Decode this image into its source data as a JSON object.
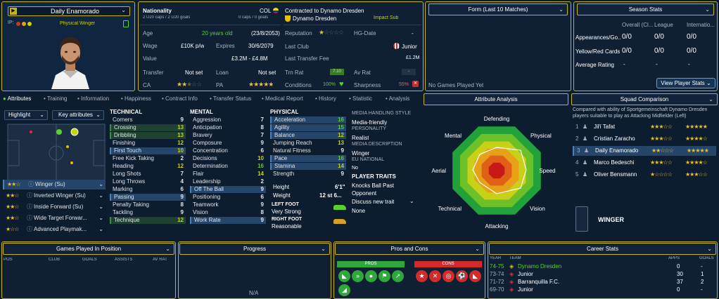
{
  "player": {
    "name": "Daily Enamorado",
    "role": "Physical Winger",
    "ip": "IP:",
    "nationality_label": "Nationality",
    "nationality": "COL",
    "caps": "1 cap / 0 goals",
    "u20": "2 U20 caps / 2 U20 goals",
    "caps_right": "0 caps / 0 goals",
    "contracted": "Contracted to Dynamo Dresden",
    "club": "Dynamo Dresden",
    "squad_status": "Impact Sub"
  },
  "info": {
    "age_label": "Age",
    "age": "20 years old",
    "dob": "(23/8/2053)",
    "wage_label": "Wage",
    "wage": "£10K p/w",
    "expires_label": "Expires",
    "expires": "30/6/2079",
    "value_label": "Value",
    "value": "£3.2M - £4.8M",
    "transfer_label": "Transfer",
    "transfer": "Not set",
    "loan_label": "Loan",
    "loan": "Not set",
    "ca_label": "CA",
    "pa_label": "PA",
    "reputation_label": "Reputation",
    "hg_label": "HG-Date",
    "hg_value": "-",
    "lastclub_label": "Last Club",
    "lastclub": "Junior",
    "ltf_label": "Last Transfer Fee",
    "ltf": "£1.2M",
    "trn_label": "Trn Rat",
    "trn_value": "7.10",
    "avrat_label": "Av Rat",
    "avrat": "-",
    "cond_label": "Conditions",
    "cond": "100%",
    "sharp_label": "Sharpness",
    "sharp": "55%"
  },
  "form": {
    "title": "Form (Last 10 Matches)",
    "empty": "No Games Played Yet"
  },
  "season": {
    "title": "Season Stats",
    "cols": [
      "Overall (Cl...",
      "League",
      "Internatio..."
    ],
    "rows": [
      {
        "label": "Appearances/Go...",
        "v": [
          "0/0",
          "0/0",
          "0/0"
        ]
      },
      {
        "label": "Yellow/Red Cards",
        "v": [
          "0/0",
          "0/0",
          "0/0"
        ]
      },
      {
        "label": "Average Rating",
        "v": [
          "-",
          "-",
          "-"
        ]
      }
    ],
    "btn": "View Player Stats"
  },
  "tabs": [
    "Attributes",
    "Training",
    "Information",
    "Happiness",
    "Contract Info",
    "Transfer Status",
    "Medical Report",
    "History",
    "Statistic",
    "Analysis"
  ],
  "highlight": {
    "select": "Highlight",
    "key": "Key attributes"
  },
  "roles": [
    {
      "name": "Winger (Su)",
      "stars": "★★☆"
    },
    {
      "name": "Inverted Winger (Su)",
      "stars": "★★☆"
    },
    {
      "name": "Inside Forward (Su)",
      "stars": "★★☆"
    },
    {
      "name": "Wide Target Forwar...",
      "stars": "★★☆"
    },
    {
      "name": "Advanced Playmak...",
      "stars": "★☆☆"
    }
  ],
  "technical": {
    "title": "TECHNICAL",
    "rows": [
      [
        "Corners",
        "9"
      ],
      [
        "Crossing",
        "13"
      ],
      [
        "Dribbling",
        "13"
      ],
      [
        "Finishing",
        "12"
      ],
      [
        "First Touch",
        "10"
      ],
      [
        "Free Kick Taking",
        "2"
      ],
      [
        "Heading",
        "12"
      ],
      [
        "Long Shots",
        "7"
      ],
      [
        "Long Throws",
        "4"
      ],
      [
        "Marking",
        "6"
      ],
      [
        "Passing",
        "9"
      ],
      [
        "Penalty Taking",
        "8"
      ],
      [
        "Tackling",
        "9"
      ],
      [
        "Technique",
        "12"
      ]
    ]
  },
  "mental": {
    "title": "MENTAL",
    "rows": [
      [
        "Aggression",
        "7"
      ],
      [
        "Anticipation",
        "8"
      ],
      [
        "Bravery",
        "7"
      ],
      [
        "Composure",
        "9"
      ],
      [
        "Concentration",
        "6"
      ],
      [
        "Decisions",
        "10"
      ],
      [
        "Determination",
        "16"
      ],
      [
        "Flair",
        "14"
      ],
      [
        "Leadership",
        "2"
      ],
      [
        "Off The Ball",
        "9"
      ],
      [
        "Positioning",
        "6"
      ],
      [
        "Teamwork",
        "9"
      ],
      [
        "Vision",
        "8"
      ],
      [
        "Work Rate",
        "9"
      ]
    ]
  },
  "physical": {
    "title": "PHYSICAL",
    "rows": [
      [
        "Acceleration",
        "16"
      ],
      [
        "Agility",
        "15"
      ],
      [
        "Balance",
        "12"
      ],
      [
        "Jumping Reach",
        "13"
      ],
      [
        "Natural Fitness",
        "9"
      ],
      [
        "Pace",
        "16"
      ],
      [
        "Stamina",
        "14"
      ],
      [
        "Strength",
        "9"
      ]
    ],
    "height_label": "Height",
    "height": "6'1\"",
    "weight_label": "Weight",
    "weight": "12 st 6...",
    "lf_label": "LEFT FOOT",
    "lf": "Very Strong",
    "rf_label": "RIGHT FOOT",
    "rf": "Reasonable"
  },
  "media": {
    "mhs_label": "MEDIA HANDLING STYLE",
    "mhs": "Media-friendly",
    "pers_label": "PERSONALITY",
    "pers": "Realist",
    "desc_label": "MEDIA DESCRIPTION",
    "desc": "Winger",
    "eu_label": "EU NATIONAL",
    "eu": "No",
    "traits_label": "PLAYER TRAITS",
    "traits": "Knocks Ball Past Opponent",
    "discuss": "Discuss new trait",
    "none": "None"
  },
  "analysis": {
    "title": "Attribute Analysis",
    "axes": [
      "Defending",
      "Physical",
      "Speed",
      "Vision",
      "Attacking",
      "Technical",
      "Aerial",
      "Mental"
    ]
  },
  "squad": {
    "title": "Squad Comparison",
    "desc": "Compared with ability of Sportgemeinschaft Dynamo Dresden players suitable to play as Attacking Midfielder (Left)",
    "rows": [
      {
        "n": "1",
        "name": "Jiří Tafat",
        "ca": "★★★☆☆",
        "pa": "★★★★★"
      },
      {
        "n": "2",
        "name": "Cristian Zaracho",
        "ca": "★★★☆☆",
        "pa": "★★★★☆"
      },
      {
        "n": "3",
        "name": "Daily Enamorado",
        "ca": "★★☆☆☆",
        "pa": "★★★★★"
      },
      {
        "n": "4",
        "name": "Marco Bedeschi",
        "ca": "★★★☆☆",
        "pa": "★★★★☆"
      },
      {
        "n": "5",
        "name": "Oliver Bensmann",
        "ca": "★☆☆☆☆",
        "pa": "★★★☆☆"
      }
    ],
    "position": "WINGER"
  },
  "bottom": {
    "games_title": "Games Played In Position",
    "games_cols": [
      "POS",
      "CLUB",
      "GOALS",
      "ASSISTS",
      "AV RAT"
    ],
    "progress_title": "Progress",
    "progress_empty": "N/A",
    "pc_title": "Pros and Cons",
    "pros": "PROS",
    "cons": "CONS",
    "career_title": "Career Stats",
    "career_cols": [
      "YEAR",
      "TEAM",
      "APPS",
      "GOALS"
    ],
    "career_rows": [
      {
        "y": "74-75",
        "t": "Dynamo Dresden",
        "a": "0",
        "g": "-"
      },
      {
        "y": "73-74",
        "t": "Junior",
        "a": "30",
        "g": "1"
      },
      {
        "y": "71-72",
        "t": "Barranquilla F.C.",
        "a": "37",
        "g": "2"
      },
      {
        "y": "69-70",
        "t": "Junior",
        "a": "0",
        "g": "-"
      }
    ]
  },
  "colors": {
    "accent": "#c8b418",
    "bg": "#0d1d30",
    "green": "#5ad12a",
    "highlight": "#25456a"
  }
}
